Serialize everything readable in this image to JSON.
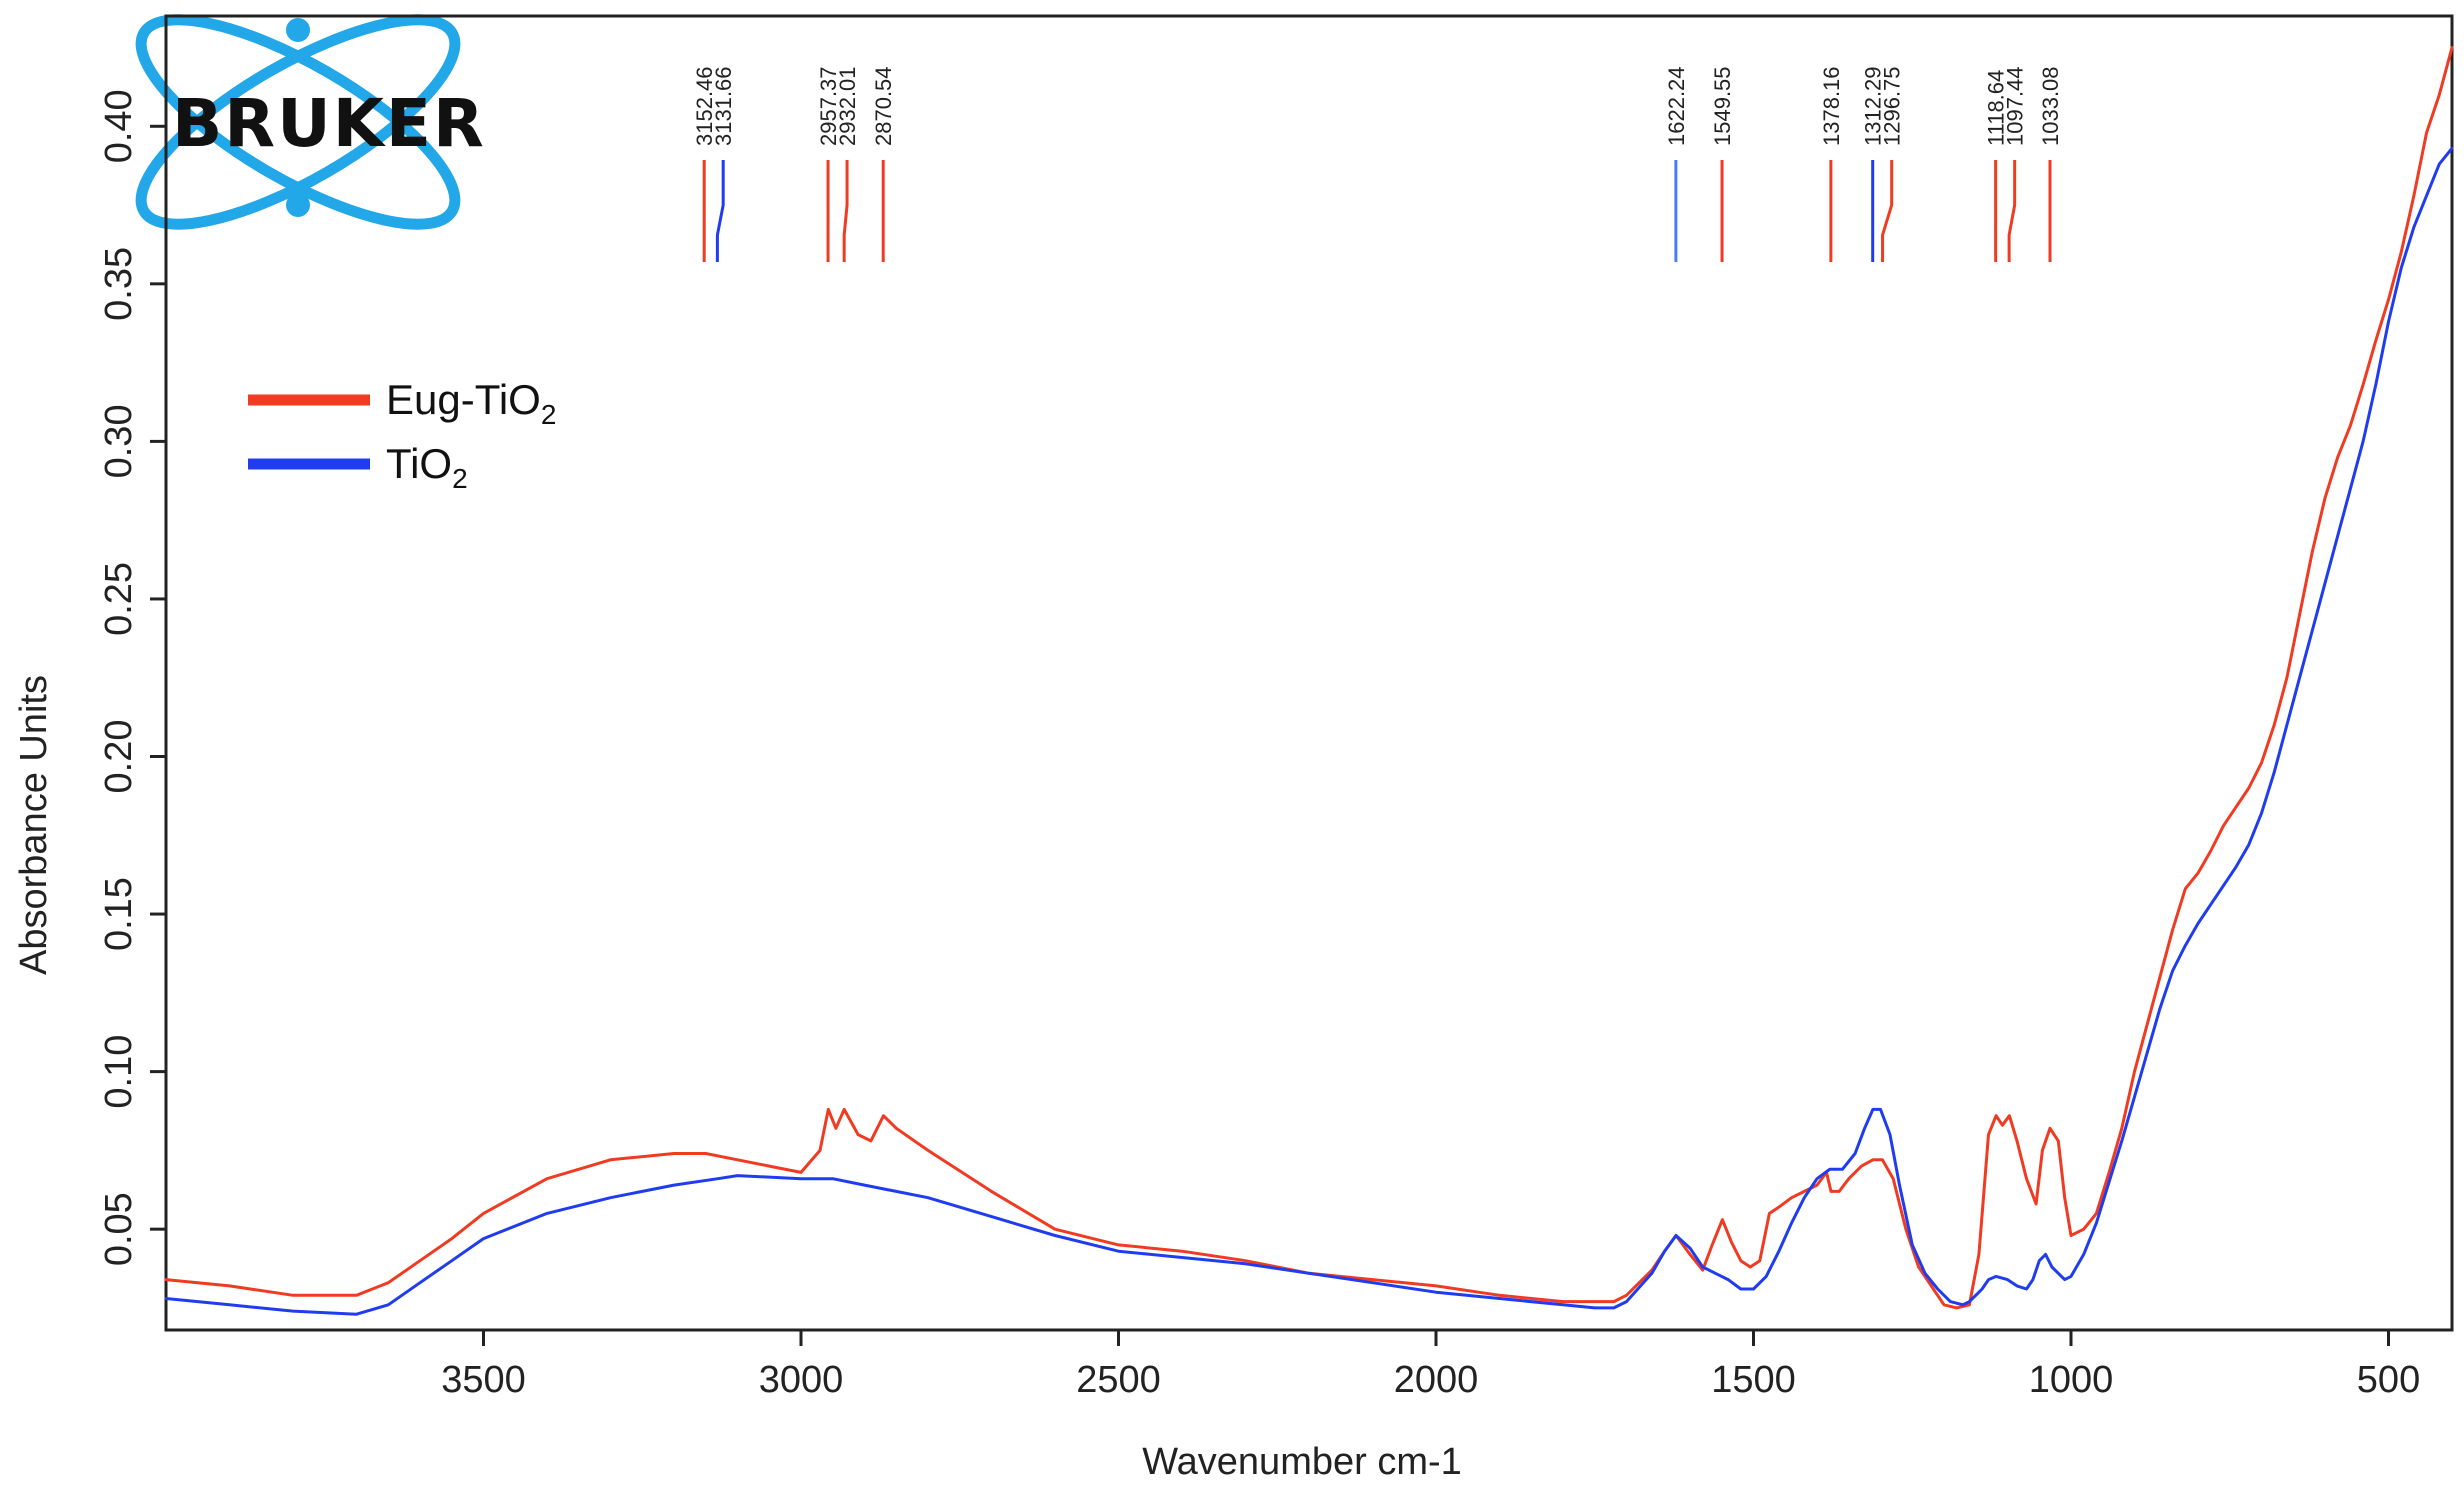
{
  "chart_data": {
    "type": "line",
    "logo_text": "BRUKER",
    "xlabel": "Wavenumber cm-1",
    "ylabel": "Absorbance Units",
    "xlim": [
      4000,
      400
    ],
    "ylim": [
      0.018,
      0.435
    ],
    "x_ticks": [
      "3500",
      "3000",
      "2500",
      "2000",
      "1500",
      "1000",
      "500"
    ],
    "x_tick_values": [
      3500,
      3000,
      2500,
      2000,
      1500,
      1000,
      500
    ],
    "y_ticks": [
      "0.05",
      "0.10",
      "0.15",
      "0.20",
      "0.25",
      "0.30",
      "0.35",
      "0.40"
    ],
    "y_tick_values": [
      0.05,
      0.1,
      0.15,
      0.2,
      0.25,
      0.3,
      0.35,
      0.4
    ],
    "legend": {
      "position": "upper-left",
      "entries": [
        {
          "label": "Eug-TiO",
          "subscript": "2",
          "color": "#f03b22"
        },
        {
          "label": "TiO",
          "subscript": "2",
          "color": "#1f3cf0"
        }
      ]
    },
    "peak_annotations": [
      {
        "label": "3152.46",
        "x": 3152.46,
        "color": "#f03b22"
      },
      {
        "label": "3131.66",
        "x": 3131.66,
        "color": "#1f3cf0"
      },
      {
        "label": "2957.37",
        "x": 2957.37,
        "color": "#f03b22"
      },
      {
        "label": "2932.01",
        "x": 2932.01,
        "color": "#f03b22"
      },
      {
        "label": "2870.54",
        "x": 2870.54,
        "color": "#f03b22"
      },
      {
        "label": "1622.24",
        "x": 1622.24,
        "color": "#4a7cf5"
      },
      {
        "label": "1549.55",
        "x": 1549.55,
        "color": "#f03b22"
      },
      {
        "label": "1378.16",
        "x": 1378.16,
        "color": "#f03b22"
      },
      {
        "label": "1312.29",
        "x": 1312.29,
        "color": "#1f3cf0"
      },
      {
        "label": "1296.75",
        "x": 1296.75,
        "color": "#f03b22"
      },
      {
        "label": "1118.64",
        "x": 1118.64,
        "color": "#f03b22"
      },
      {
        "label": "1097.44",
        "x": 1097.44,
        "color": "#f03b22"
      },
      {
        "label": "1033.08",
        "x": 1033.08,
        "color": "#f03b22"
      }
    ],
    "series": [
      {
        "name": "Eug-TiO2",
        "color": "#f03b22",
        "x": [
          4000,
          3900,
          3800,
          3700,
          3650,
          3600,
          3550,
          3500,
          3400,
          3300,
          3200,
          3150,
          3100,
          3050,
          3000,
          2970,
          2957,
          2945,
          2932,
          2910,
          2890,
          2870,
          2850,
          2800,
          2700,
          2600,
          2500,
          2400,
          2300,
          2200,
          2100,
          2000,
          1900,
          1800,
          1750,
          1720,
          1700,
          1660,
          1640,
          1622,
          1600,
          1580,
          1565,
          1549,
          1535,
          1520,
          1505,
          1490,
          1475,
          1460,
          1440,
          1420,
          1400,
          1385,
          1378,
          1365,
          1350,
          1330,
          1312,
          1297,
          1280,
          1260,
          1240,
          1220,
          1200,
          1180,
          1160,
          1145,
          1130,
          1118,
          1108,
          1097,
          1085,
          1070,
          1055,
          1045,
          1033,
          1020,
          1010,
          1000,
          980,
          960,
          940,
          920,
          900,
          880,
          860,
          840,
          820,
          800,
          780,
          760,
          740,
          720,
          700,
          680,
          660,
          640,
          620,
          600,
          580,
          560,
          540,
          520,
          500,
          480,
          460,
          440,
          420,
          400
        ],
        "y": [
          0.034,
          0.032,
          0.029,
          0.029,
          0.033,
          0.04,
          0.047,
          0.055,
          0.066,
          0.072,
          0.074,
          0.074,
          0.072,
          0.07,
          0.068,
          0.075,
          0.088,
          0.082,
          0.088,
          0.08,
          0.078,
          0.086,
          0.082,
          0.075,
          0.062,
          0.05,
          0.045,
          0.043,
          0.04,
          0.036,
          0.034,
          0.032,
          0.029,
          0.027,
          0.027,
          0.027,
          0.029,
          0.037,
          0.043,
          0.048,
          0.042,
          0.037,
          0.045,
          0.053,
          0.046,
          0.04,
          0.038,
          0.04,
          0.055,
          0.057,
          0.06,
          0.062,
          0.064,
          0.068,
          0.062,
          0.062,
          0.066,
          0.07,
          0.072,
          0.072,
          0.066,
          0.05,
          0.038,
          0.032,
          0.026,
          0.025,
          0.026,
          0.042,
          0.08,
          0.086,
          0.083,
          0.086,
          0.078,
          0.066,
          0.058,
          0.075,
          0.082,
          0.078,
          0.06,
          0.048,
          0.05,
          0.055,
          0.068,
          0.082,
          0.1,
          0.115,
          0.13,
          0.145,
          0.158,
          0.163,
          0.17,
          0.178,
          0.184,
          0.19,
          0.198,
          0.21,
          0.225,
          0.245,
          0.265,
          0.282,
          0.295,
          0.305,
          0.318,
          0.332,
          0.345,
          0.36,
          0.378,
          0.398,
          0.41,
          0.425
        ]
      },
      {
        "name": "TiO2",
        "color": "#1f3cf0",
        "x": [
          4000,
          3900,
          3800,
          3700,
          3650,
          3600,
          3550,
          3500,
          3400,
          3300,
          3200,
          3131,
          3100,
          3000,
          2950,
          2900,
          2800,
          2700,
          2600,
          2500,
          2400,
          2300,
          2200,
          2100,
          2000,
          1900,
          1800,
          1750,
          1720,
          1700,
          1660,
          1640,
          1622,
          1600,
          1580,
          1560,
          1540,
          1520,
          1500,
          1480,
          1460,
          1440,
          1420,
          1400,
          1380,
          1360,
          1340,
          1325,
          1312,
          1300,
          1285,
          1270,
          1250,
          1230,
          1210,
          1190,
          1170,
          1160,
          1150,
          1140,
          1130,
          1118,
          1100,
          1085,
          1070,
          1060,
          1050,
          1040,
          1030,
          1020,
          1010,
          1000,
          980,
          960,
          940,
          920,
          900,
          880,
          860,
          840,
          820,
          800,
          780,
          760,
          740,
          720,
          700,
          680,
          660,
          640,
          620,
          600,
          580,
          560,
          540,
          520,
          500,
          480,
          460,
          440,
          420,
          400
        ],
        "y": [
          0.028,
          0.026,
          0.024,
          0.023,
          0.026,
          0.033,
          0.04,
          0.047,
          0.055,
          0.06,
          0.064,
          0.066,
          0.067,
          0.066,
          0.066,
          0.064,
          0.06,
          0.054,
          0.048,
          0.043,
          0.041,
          0.039,
          0.036,
          0.033,
          0.03,
          0.028,
          0.026,
          0.025,
          0.025,
          0.027,
          0.036,
          0.043,
          0.048,
          0.044,
          0.038,
          0.036,
          0.034,
          0.031,
          0.031,
          0.035,
          0.043,
          0.052,
          0.06,
          0.066,
          0.069,
          0.069,
          0.074,
          0.082,
          0.088,
          0.088,
          0.08,
          0.064,
          0.045,
          0.036,
          0.031,
          0.027,
          0.026,
          0.027,
          0.029,
          0.031,
          0.034,
          0.035,
          0.034,
          0.032,
          0.031,
          0.034,
          0.04,
          0.042,
          0.038,
          0.036,
          0.034,
          0.035,
          0.042,
          0.052,
          0.065,
          0.078,
          0.092,
          0.106,
          0.12,
          0.132,
          0.14,
          0.147,
          0.153,
          0.159,
          0.165,
          0.172,
          0.182,
          0.195,
          0.21,
          0.225,
          0.24,
          0.255,
          0.27,
          0.285,
          0.3,
          0.318,
          0.338,
          0.355,
          0.368,
          0.378,
          0.388,
          0.393
        ]
      }
    ]
  }
}
